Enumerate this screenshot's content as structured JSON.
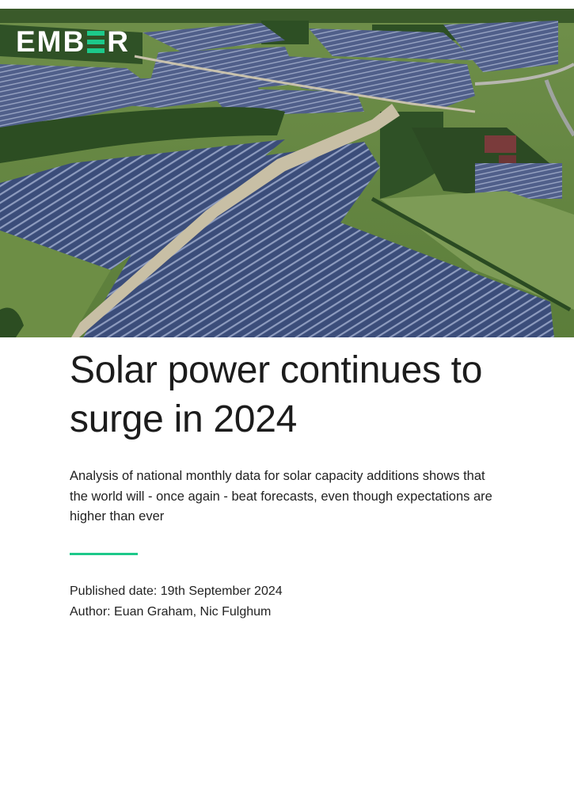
{
  "brand": {
    "logo_prefix": "EMB",
    "logo_suffix": "R",
    "accent_color": "#1dc98a"
  },
  "hero": {
    "image_icon": "solar-farm-aerial-photo"
  },
  "report": {
    "title": "Solar power continues to surge in 2024",
    "subtitle": "Analysis of national monthly data for solar capacity additions shows that the world will - once again - beat forecasts, even though expectations are higher than ever",
    "published_label": "Published date: 19th September 2024",
    "author_label": "Author: Euan Graham, Nic Fulghum"
  }
}
